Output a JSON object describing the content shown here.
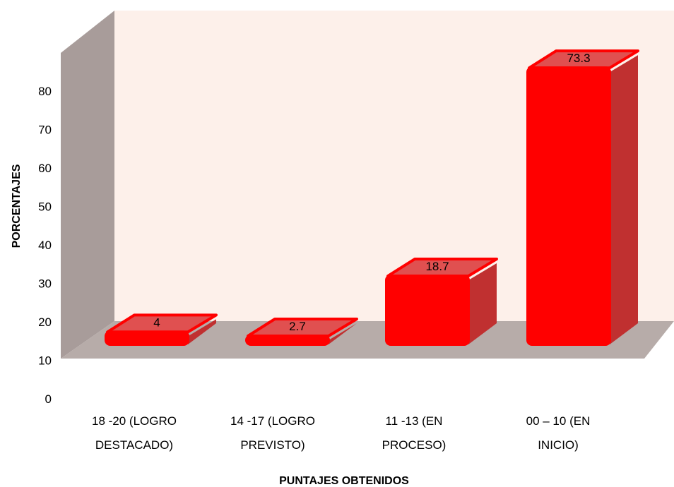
{
  "chart_data": {
    "type": "bar",
    "categories": [
      [
        "18 -20 (LOGRO",
        "DESTACADO)"
      ],
      [
        "14 -17 (LOGRO",
        "PREVISTO)"
      ],
      [
        "11 -13 (EN",
        "PROCESO)"
      ],
      [
        "00 – 10 (EN",
        "INICIO)"
      ]
    ],
    "values": [
      4,
      2.7,
      18.7,
      73.3
    ],
    "data_labels": [
      "4",
      "2.7",
      "18.7",
      "73.3"
    ],
    "y_ticks": [
      "0",
      "10",
      "20",
      "30",
      "40",
      "50",
      "60",
      "70",
      "80"
    ],
    "ylim": [
      0,
      80
    ],
    "xlabel": "PUNTAJES OBTENIDOS",
    "ylabel": "PORCENTAJES",
    "grid": false,
    "colors": {
      "bar_front": "#ff0000",
      "bar_top": "#e05050",
      "bar_side": "#c03030",
      "back_wall": "#fdf0ea",
      "side_wall": "#a89c9a",
      "floor": "#b7aca9"
    }
  }
}
